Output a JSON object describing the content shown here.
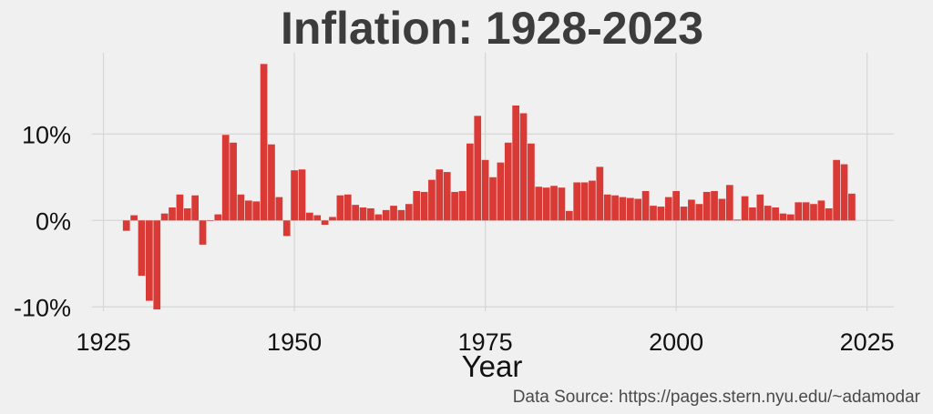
{
  "chart_data": {
    "type": "bar",
    "title": "Inflation: 1928-2023",
    "xlabel": "Year",
    "ylabel": "",
    "source": "Data Source: https://pages.stern.nyu.edu/~adamodar",
    "xlim": [
      1923.5,
      2028.5
    ],
    "ylim": [
      -10.5,
      19.4
    ],
    "xticks": [
      1925,
      1950,
      1975,
      2000,
      2025
    ],
    "yticks": [
      -10,
      0,
      10
    ],
    "ytick_labels": [
      "-10%",
      "0%",
      "10%"
    ],
    "grid": true,
    "legend": "none",
    "bar_color": "#d93a35",
    "background": "#f0f0f0",
    "x": [
      1928,
      1929,
      1930,
      1931,
      1932,
      1933,
      1934,
      1935,
      1936,
      1937,
      1938,
      1939,
      1940,
      1941,
      1942,
      1943,
      1944,
      1945,
      1946,
      1947,
      1948,
      1949,
      1950,
      1951,
      1952,
      1953,
      1954,
      1955,
      1956,
      1957,
      1958,
      1959,
      1960,
      1961,
      1962,
      1963,
      1964,
      1965,
      1966,
      1967,
      1968,
      1969,
      1970,
      1971,
      1972,
      1973,
      1974,
      1975,
      1976,
      1977,
      1978,
      1979,
      1980,
      1981,
      1982,
      1983,
      1984,
      1985,
      1986,
      1987,
      1988,
      1989,
      1990,
      1991,
      1992,
      1993,
      1994,
      1995,
      1996,
      1997,
      1998,
      1999,
      2000,
      2001,
      2002,
      2003,
      2004,
      2005,
      2006,
      2007,
      2008,
      2009,
      2010,
      2011,
      2012,
      2013,
      2014,
      2015,
      2016,
      2017,
      2018,
      2019,
      2020,
      2021,
      2022,
      2023
    ],
    "values": [
      -1.2,
      0.6,
      -6.4,
      -9.3,
      -10.3,
      0.8,
      1.5,
      3.0,
      1.4,
      2.9,
      -2.8,
      0.0,
      0.7,
      9.9,
      9.0,
      3.0,
      2.3,
      2.2,
      18.1,
      8.8,
      2.7,
      -1.8,
      5.8,
      5.9,
      0.9,
      0.6,
      -0.5,
      0.4,
      2.9,
      3.0,
      1.8,
      1.5,
      1.4,
      0.7,
      1.2,
      1.7,
      1.2,
      1.9,
      3.4,
      3.3,
      4.7,
      5.9,
      5.6,
      3.3,
      3.4,
      8.9,
      12.1,
      7.0,
      5.0,
      6.7,
      9.0,
      13.3,
      12.4,
      8.9,
      3.9,
      3.8,
      4.0,
      3.8,
      1.1,
      4.4,
      4.4,
      4.6,
      6.2,
      3.0,
      2.9,
      2.7,
      2.6,
      2.5,
      3.4,
      1.7,
      1.6,
      2.7,
      3.4,
      1.6,
      2.4,
      1.9,
      3.3,
      3.4,
      2.5,
      4.1,
      0.1,
      2.8,
      1.5,
      3.0,
      1.7,
      1.5,
      0.8,
      0.7,
      2.1,
      2.1,
      1.9,
      2.3,
      1.4,
      7.0,
      6.5,
      3.1
    ]
  }
}
